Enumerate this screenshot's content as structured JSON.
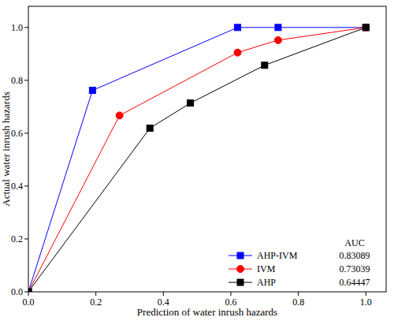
{
  "chart_data": {
    "type": "line",
    "x_label": "Prediction of water inrush hazards",
    "y_label": "Actual water inrush hazards",
    "legend_title": "AUC",
    "legend": "lower right",
    "grid": false,
    "xlim": [
      0,
      1.06
    ],
    "ylim": [
      0,
      1.08
    ],
    "xticks": [
      {
        "value": 0,
        "label": "0.0"
      },
      {
        "value": 0.2,
        "label": "0.2"
      },
      {
        "value": 0.4,
        "label": "0.4"
      },
      {
        "value": 0.6,
        "label": "0.6"
      },
      {
        "value": 0.8,
        "label": "0.8"
      },
      {
        "value": 1,
        "label": "1.0"
      }
    ],
    "yticks": [
      {
        "value": 0,
        "label": "0.0"
      },
      {
        "value": 0.2,
        "label": "0.2"
      },
      {
        "value": 0.4,
        "label": "0.4"
      },
      {
        "value": 0.6,
        "label": "0.6"
      },
      {
        "value": 0.8,
        "label": "0.8"
      },
      {
        "value": 1,
        "label": "1.0"
      }
    ],
    "series": [
      {
        "name": "AHP-IVM",
        "color": "#0000ff",
        "marker": "square",
        "auc": 0.83089,
        "x": [
          0,
          0.19,
          0.62,
          0.74,
          1
        ],
        "values": [
          0,
          0.762,
          1,
          1,
          1
        ]
      },
      {
        "name": "IVM",
        "color": "#ff0000",
        "marker": "circle",
        "auc": 0.73039,
        "x": [
          0,
          0.27,
          0.62,
          0.74,
          1
        ],
        "values": [
          0,
          0.667,
          0.905,
          0.952,
          1
        ]
      },
      {
        "name": "AHP",
        "color": "#000000",
        "marker": "square",
        "auc": 0.64447,
        "x": [
          0,
          0.36,
          0.48,
          0.7,
          1
        ],
        "values": [
          0,
          0.619,
          0.714,
          0.857,
          1
        ]
      }
    ]
  }
}
